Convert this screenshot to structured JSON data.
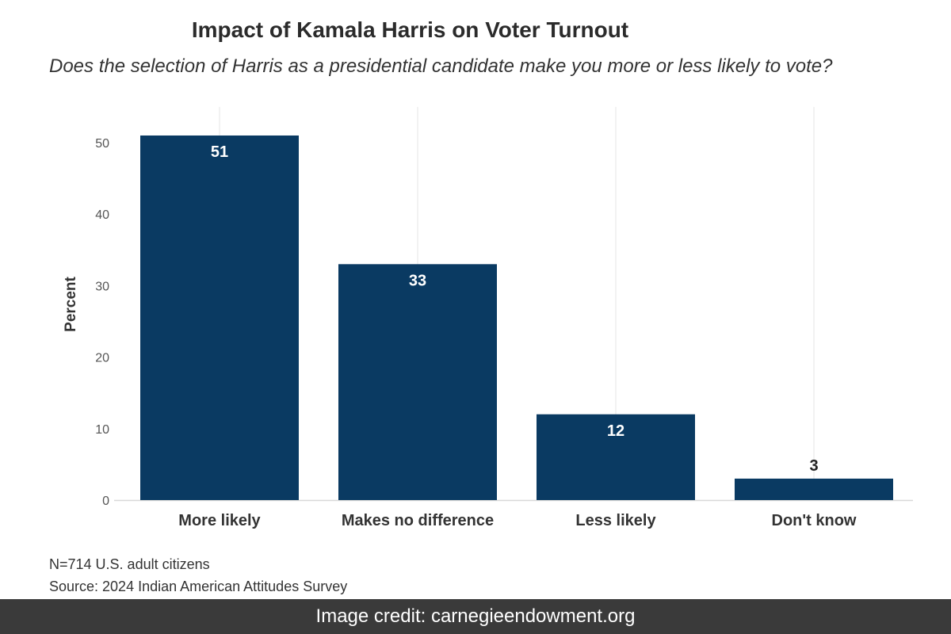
{
  "chart_data": {
    "type": "bar",
    "title": "Impact of Kamala Harris on Voter Turnout",
    "subtitle": "Does the selection of Harris as a presidential candidate make you more or less likely to vote?",
    "categories": [
      "More likely",
      "Makes no difference",
      "Less likely",
      "Don't know"
    ],
    "values": [
      51,
      33,
      12,
      3
    ],
    "xlabel": "",
    "ylabel": "Percent",
    "ylim": [
      0,
      55
    ],
    "yticks": [
      0,
      10,
      20,
      30,
      40,
      50
    ],
    "grid": true,
    "colors": {
      "bar": "#0a3a62",
      "label_inside": "#ffffff",
      "label_outside": "#222222"
    }
  },
  "notes": {
    "sample": "N=714 U.S. adult citizens",
    "source": "Source: 2024 Indian American Attitudes Survey"
  },
  "credit": "Image credit: carnegieendowment.org"
}
